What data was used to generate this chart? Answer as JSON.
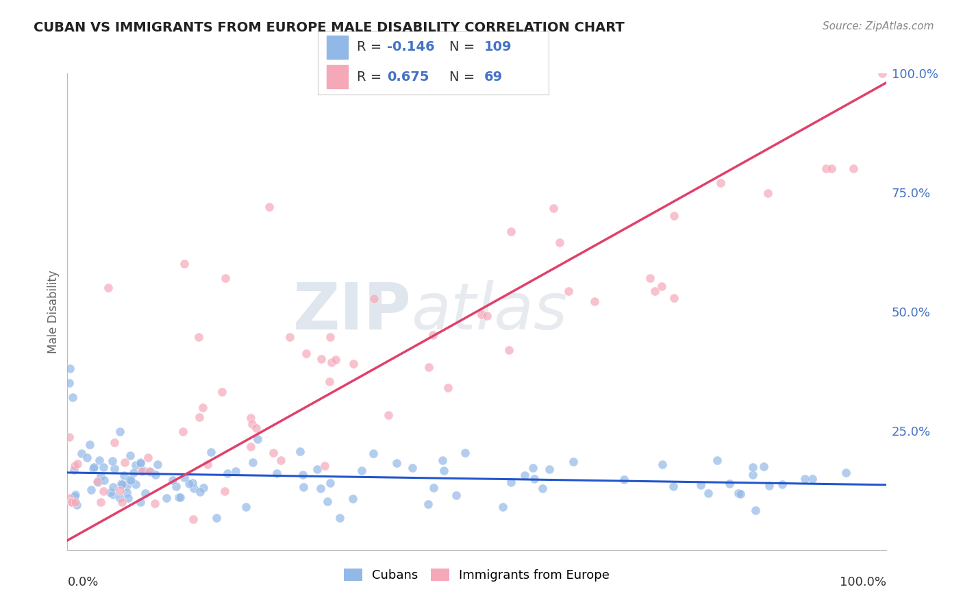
{
  "title": "CUBAN VS IMMIGRANTS FROM EUROPE MALE DISABILITY CORRELATION CHART",
  "source": "Source: ZipAtlas.com",
  "ylabel": "Male Disability",
  "cubans_R": -0.146,
  "cubans_N": 109,
  "europe_R": 0.675,
  "europe_N": 69,
  "cubans_color": "#92b8e8",
  "europe_color": "#f5a8b8",
  "cubans_line_color": "#2255cc",
  "europe_line_color": "#e0406a",
  "legend_color": "#4472c4",
  "title_color": "#222222",
  "source_color": "#888888",
  "grid_color": "#cccccc",
  "right_tick_color": "#4472c4",
  "ylabel_color": "#666666",
  "watermark_color": "#ccd9e8",
  "bottom_label_color": "#333333"
}
